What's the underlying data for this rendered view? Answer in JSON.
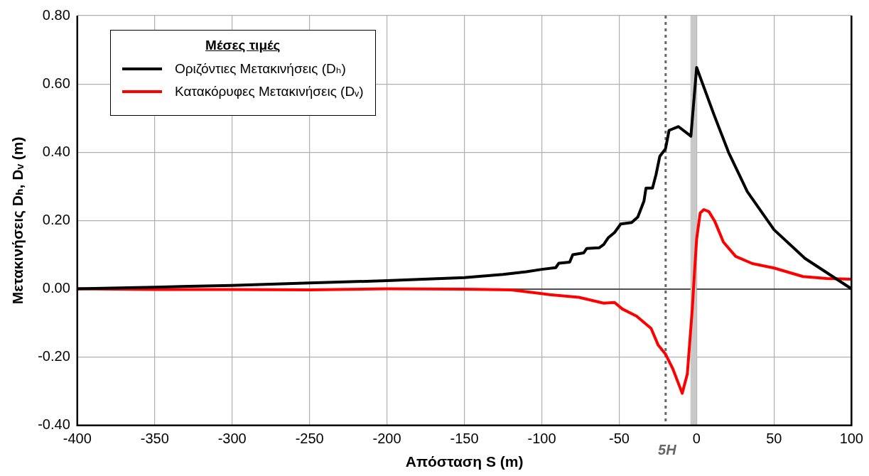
{
  "chart_data": {
    "type": "line",
    "xlabel": "Απόσταση S (m)",
    "ylabel": "Μετακινήσεις Dₕ, Dᵥ (m)",
    "legend_title": "Μέσες τιμές",
    "series": [
      {
        "name": "Οριζόντιες Μετακινήσεις (Dₕ)",
        "color": "#000000",
        "x": [
          -400,
          -350,
          -300,
          -250,
          -200,
          -150,
          -125,
          -110,
          -100,
          -91,
          -89,
          -82,
          -80,
          -73,
          -71,
          -63,
          -60,
          -57,
          -53,
          -49,
          -42,
          -38,
          -34,
          -32.7,
          -28.5,
          -26.2,
          -23.8,
          -20.1,
          -17.8,
          -11.7,
          -3.7,
          0,
          11.2,
          20.6,
          32.7,
          50,
          70,
          100
        ],
        "values": [
          0,
          0.005,
          0.01,
          0.017,
          0.024,
          0.033,
          0.042,
          0.05,
          0.057,
          0.062,
          0.075,
          0.078,
          0.1,
          0.105,
          0.118,
          0.12,
          0.13,
          0.15,
          0.165,
          0.19,
          0.194,
          0.21,
          0.257,
          0.295,
          0.295,
          0.335,
          0.388,
          0.41,
          0.464,
          0.475,
          0.447,
          0.648,
          0.51,
          0.4,
          0.285,
          0.173,
          0.089,
          0
        ]
      },
      {
        "name": "Κατακόρυφες Μετακινήσεις (Dᵥ)",
        "color": "#ff0000",
        "x": [
          -400,
          -350,
          -300,
          -250,
          -200,
          -150,
          -120,
          -116,
          -95,
          -76,
          -60,
          -53,
          -48,
          -38.8,
          -29.4,
          -24.8,
          -20,
          -15.4,
          -9.3,
          -6,
          -2.8,
          -1.4,
          0,
          2.3,
          4.7,
          7.9,
          11.7,
          17.3,
          25.2,
          36,
          50,
          68.7,
          84,
          100
        ],
        "values": [
          0,
          -0.002,
          -0.002,
          -0.003,
          0,
          -0.001,
          -0.003,
          -0.005,
          -0.017,
          -0.025,
          -0.042,
          -0.04,
          -0.059,
          -0.08,
          -0.116,
          -0.165,
          -0.192,
          -0.234,
          -0.306,
          -0.249,
          -0.059,
          0.046,
          0.146,
          0.222,
          0.232,
          0.226,
          0.198,
          0.137,
          0.095,
          0.074,
          0.061,
          0.036,
          0.03,
          0.028
        ]
      }
    ],
    "xlim": [
      -400,
      100
    ],
    "xticks": [
      -400,
      -350,
      -300,
      -250,
      -200,
      -150,
      -100,
      -50,
      0,
      50,
      100
    ],
    "ylim": [
      -0.4,
      0.8
    ],
    "yticks": [
      {
        "value": -0.4,
        "label": "-0.40"
      },
      {
        "value": -0.2,
        "label": "-0.20"
      },
      {
        "value": 0,
        "label": "0.00"
      },
      {
        "value": 0.2,
        "label": "0.20"
      },
      {
        "value": 0.4,
        "label": "0.40"
      },
      {
        "value": 0.6,
        "label": "0.60"
      },
      {
        "value": 0.8,
        "label": "0.80"
      }
    ],
    "ref_lines": [
      {
        "axis": "x",
        "value": -20,
        "label": "5H",
        "color": "#666666",
        "line_style": "dotted"
      }
    ],
    "bands": [
      {
        "axis": "x",
        "from": -4,
        "to": 0,
        "color": "#c8c8c8"
      }
    ],
    "grid": true,
    "legend": "top left",
    "marker": "none",
    "line_style": "solid"
  }
}
